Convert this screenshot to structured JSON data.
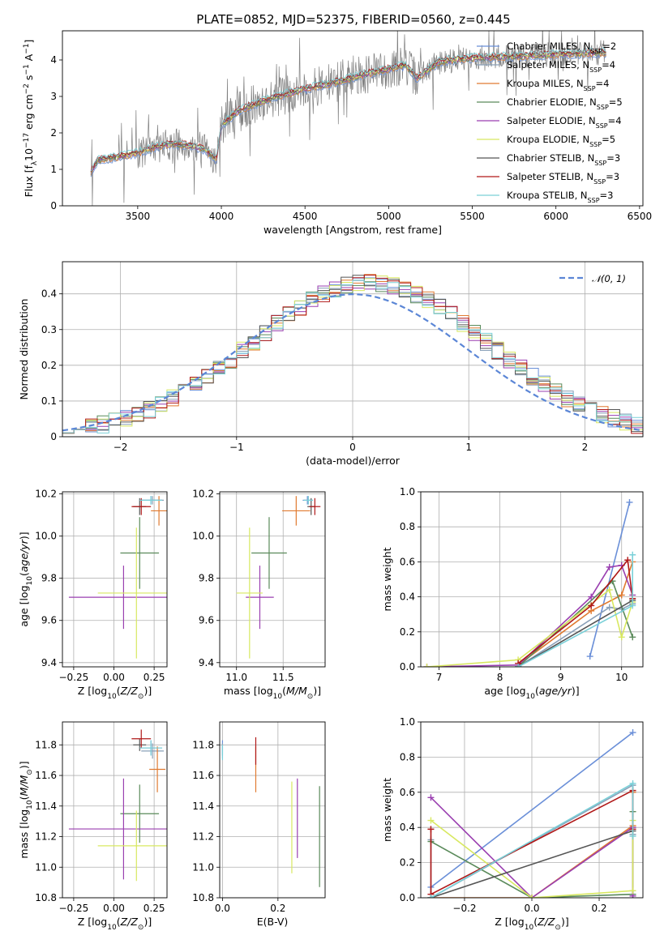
{
  "figure": {
    "title": "PLATE=0852, MJD=52375, FIBERID=0560, z=0.445"
  },
  "legend_entries": [
    {
      "name": "Chabrier MILES",
      "nssp": "2",
      "color": "#6a8fd8"
    },
    {
      "name": "Salpeter MILES",
      "nssp": "4",
      "color": "#8aa0b8"
    },
    {
      "name": "Kroupa MILES",
      "nssp": "4",
      "color": "#e07a30"
    },
    {
      "name": "Chabrier ELODIE",
      "nssp": "5",
      "color": "#5a8a5a"
    },
    {
      "name": "Salpeter ELODIE",
      "nssp": "4",
      "color": "#9a3fb0"
    },
    {
      "name": "Kroupa ELODIE",
      "nssp": "5",
      "color": "#d8e860"
    },
    {
      "name": "Chabrier STELIB",
      "nssp": "3",
      "color": "#555555"
    },
    {
      "name": "Salpeter STELIB",
      "nssp": "3",
      "color": "#b01818"
    },
    {
      "name": "Kroupa STELIB",
      "nssp": "3",
      "color": "#7ad0d8"
    }
  ],
  "chart_data": [
    {
      "id": "spectrum",
      "type": "line",
      "xlabel": "wavelength [Angstrom, rest frame]",
      "ylabel": "Flux [f_λ 10^-17 erg cm^-2 s^-1 A^-1]",
      "xlim": [
        3050,
        6520
      ],
      "ylim": [
        0,
        4.8
      ],
      "xticks": [
        3500,
        4000,
        4500,
        5000,
        5500,
        6000,
        6500
      ],
      "yticks": [
        0,
        1,
        2,
        3,
        4
      ],
      "legend_position": "right",
      "spectrum_start": 3220,
      "spectrum_end": 6300,
      "model_anchors": {
        "x": [
          3220,
          3260,
          3400,
          3500,
          3600,
          3700,
          3800,
          3900,
          3970,
          4000,
          4100,
          4300,
          4500,
          4700,
          4900,
          5000,
          5100,
          5170,
          5300,
          5500,
          5800,
          6000,
          6300
        ],
        "y": [
          0.9,
          1.25,
          1.35,
          1.45,
          1.6,
          1.7,
          1.65,
          1.55,
          1.25,
          2.2,
          2.6,
          2.95,
          3.2,
          3.4,
          3.65,
          3.75,
          3.85,
          3.5,
          3.95,
          4.05,
          4.1,
          4.15,
          4.2
        ]
      }
    },
    {
      "id": "residuals",
      "type": "line",
      "xlabel": "(data-model)/error",
      "ylabel": "Normed distribution",
      "xlim": [
        -2.5,
        2.5
      ],
      "ylim": [
        0,
        0.49
      ],
      "xticks": [
        -2,
        -1,
        0,
        1,
        2
      ],
      "yticks": [
        0,
        0.1,
        0.2,
        0.3,
        0.4
      ],
      "grid": true,
      "legend_position": "top-right",
      "reference_curve": "N(0,1)",
      "bin_width": 0.1
    },
    {
      "id": "age-vs-Z",
      "type": "scatter",
      "xlabel": "Z [log10(Z/Z_sun)]",
      "ylabel": "age [log10(age/yr)]",
      "xlim": [
        -0.32,
        0.33
      ],
      "ylim": [
        9.38,
        10.21
      ],
      "xticks": [
        -0.25,
        0.0,
        0.25
      ],
      "yticks": [
        9.4,
        9.6,
        9.8,
        10.0,
        10.2
      ],
      "grid": true,
      "points": [
        {
          "x": 0.23,
          "y": 10.17,
          "xerr": 0.07,
          "yerr": 0.02,
          "series": "Chabrier MILES"
        },
        {
          "x": 0.24,
          "y": 10.17,
          "xerr": 0.07,
          "yerr": 0.02,
          "series": "Salpeter MILES"
        },
        {
          "x": 0.28,
          "y": 10.12,
          "xerr": 0.05,
          "yerr": 0.07,
          "series": "Kroupa MILES"
        },
        {
          "x": 0.16,
          "y": 9.92,
          "xerr": 0.12,
          "yerr": 0.17,
          "series": "Chabrier ELODIE"
        },
        {
          "x": 0.06,
          "y": 9.71,
          "xerr": 0.34,
          "yerr": 0.15,
          "series": "Salpeter ELODIE"
        },
        {
          "x": 0.14,
          "y": 9.73,
          "xerr": 0.24,
          "yerr": 0.31,
          "series": "Kroupa ELODIE"
        },
        {
          "x": 0.16,
          "y": 10.14,
          "xerr": 0.04,
          "yerr": 0.04,
          "series": "Chabrier STELIB"
        },
        {
          "x": 0.17,
          "y": 10.14,
          "xerr": 0.06,
          "yerr": 0.04,
          "series": "Salpeter STELIB"
        },
        {
          "x": 0.23,
          "y": 10.17,
          "xerr": 0.07,
          "yerr": 0.02,
          "series": "Kroupa STELIB"
        }
      ]
    },
    {
      "id": "age-vs-mass",
      "type": "scatter",
      "xlabel": "mass [log10(M/M_sun)]",
      "ylabel": "",
      "xlim": [
        10.82,
        11.95
      ],
      "ylim": [
        9.38,
        10.21
      ],
      "xticks": [
        11.0,
        11.5
      ],
      "yticks": [
        9.4,
        9.6,
        9.8,
        10.0,
        10.2
      ],
      "grid": true,
      "points": [
        {
          "x": 11.76,
          "y": 10.17,
          "xerr": 0.05,
          "yerr": 0.02,
          "series": "Chabrier MILES"
        },
        {
          "x": 11.77,
          "y": 10.17,
          "xerr": 0.05,
          "yerr": 0.02,
          "series": "Salpeter MILES"
        },
        {
          "x": 11.64,
          "y": 10.12,
          "xerr": 0.15,
          "yerr": 0.07,
          "series": "Kroupa MILES"
        },
        {
          "x": 11.35,
          "y": 9.92,
          "xerr": 0.19,
          "yerr": 0.17,
          "series": "Chabrier ELODIE"
        },
        {
          "x": 11.25,
          "y": 9.71,
          "xerr": 0.15,
          "yerr": 0.15,
          "series": "Salpeter ELODIE"
        },
        {
          "x": 11.14,
          "y": 9.73,
          "xerr": 0.14,
          "yerr": 0.31,
          "series": "Kroupa ELODIE"
        },
        {
          "x": 11.8,
          "y": 10.14,
          "xerr": 0.04,
          "yerr": 0.04,
          "series": "Chabrier STELIB"
        },
        {
          "x": 11.84,
          "y": 10.14,
          "xerr": 0.06,
          "yerr": 0.04,
          "series": "Salpeter STELIB"
        },
        {
          "x": 11.77,
          "y": 10.17,
          "xerr": 0.05,
          "yerr": 0.02,
          "series": "Kroupa STELIB"
        }
      ]
    },
    {
      "id": "massweight-vs-age",
      "type": "line",
      "xlabel": "age [log10(age/yr)]",
      "ylabel": "mass weight",
      "xlim": [
        6.7,
        10.35
      ],
      "ylim": [
        0,
        1.0
      ],
      "xticks": [
        7,
        8,
        9,
        10
      ],
      "yticks": [
        0.0,
        0.2,
        0.4,
        0.6,
        0.8,
        1.0
      ],
      "grid": true,
      "series": [
        {
          "name": "Chabrier MILES",
          "x": [
            9.48,
            10.13
          ],
          "y": [
            0.06,
            0.94
          ]
        },
        {
          "name": "Salpeter MILES",
          "x": [
            8.3,
            9.8,
            10.0,
            10.18
          ],
          "y": [
            0.0,
            0.34,
            0.33,
            0.36
          ]
        },
        {
          "name": "Kroupa MILES",
          "x": [
            8.3,
            9.5,
            10.0,
            10.18
          ],
          "y": [
            0.01,
            0.32,
            0.41,
            0.6
          ]
        },
        {
          "name": "Chabrier ELODIE",
          "x": [
            8.3,
            9.85,
            10.18
          ],
          "y": [
            0.0,
            0.49,
            0.17
          ]
        },
        {
          "name": "Salpeter ELODIE",
          "x": [
            6.8,
            8.3,
            9.5,
            9.8,
            10.0,
            10.18
          ],
          "y": [
            0.0,
            0.01,
            0.4,
            0.57,
            0.58,
            0.41
          ]
        },
        {
          "name": "Kroupa ELODIE",
          "x": [
            6.8,
            8.3,
            9.8,
            10.0,
            10.18
          ],
          "y": [
            0.0,
            0.04,
            0.44,
            0.17,
            0.37
          ]
        },
        {
          "name": "Chabrier STELIB",
          "x": [
            8.3,
            10.18
          ],
          "y": [
            0.0,
            0.38
          ]
        },
        {
          "name": "Salpeter STELIB",
          "x": [
            8.3,
            9.5,
            10.1,
            10.18
          ],
          "y": [
            0.02,
            0.35,
            0.61,
            0.39
          ]
        },
        {
          "name": "Kroupa STELIB",
          "x": [
            8.3,
            10.18,
            10.18
          ],
          "y": [
            0.0,
            0.35,
            0.64
          ]
        }
      ]
    },
    {
      "id": "mass-vs-Z",
      "type": "scatter",
      "xlabel": "Z [log10(Z/Z_sun)]",
      "ylabel": "mass [log10(M/M_sun)]",
      "xlim": [
        -0.32,
        0.33
      ],
      "ylim": [
        10.8,
        11.95
      ],
      "xticks": [
        -0.25,
        0.0,
        0.25
      ],
      "yticks": [
        10.8,
        11.0,
        11.2,
        11.4,
        11.6,
        11.8
      ],
      "grid": true,
      "points": [
        {
          "x": 0.23,
          "y": 11.78,
          "xerr": 0.07,
          "yerr": 0.05,
          "series": "Chabrier MILES"
        },
        {
          "x": 0.24,
          "y": 11.76,
          "xerr": 0.07,
          "yerr": 0.05,
          "series": "Salpeter MILES"
        },
        {
          "x": 0.27,
          "y": 11.64,
          "xerr": 0.05,
          "yerr": 0.15,
          "series": "Kroupa MILES"
        },
        {
          "x": 0.16,
          "y": 11.35,
          "xerr": 0.12,
          "yerr": 0.19,
          "series": "Chabrier ELODIE"
        },
        {
          "x": 0.06,
          "y": 11.25,
          "xerr": 0.34,
          "yerr": 0.33,
          "series": "Salpeter ELODIE"
        },
        {
          "x": 0.14,
          "y": 11.14,
          "xerr": 0.24,
          "yerr": 0.23,
          "series": "Kroupa ELODIE"
        },
        {
          "x": 0.16,
          "y": 11.8,
          "xerr": 0.04,
          "yerr": 0.04,
          "series": "Chabrier STELIB"
        },
        {
          "x": 0.17,
          "y": 11.84,
          "xerr": 0.06,
          "yerr": 0.06,
          "series": "Salpeter STELIB"
        },
        {
          "x": 0.23,
          "y": 11.78,
          "xerr": 0.07,
          "yerr": 0.05,
          "series": "Kroupa STELIB"
        }
      ]
    },
    {
      "id": "mass-vs-EBV",
      "type": "scatter",
      "xlabel": "E(B-V)",
      "ylabel": "",
      "xlim": [
        -0.01,
        0.37
      ],
      "ylim": [
        10.8,
        11.95
      ],
      "xticks": [
        0.0,
        0.2
      ],
      "yticks": [
        10.8,
        11.0,
        11.2,
        11.4,
        11.6,
        11.8
      ],
      "grid": true,
      "points": [
        {
          "x": 0.0,
          "y": 11.78,
          "yerr": 0.05,
          "series": "Chabrier MILES"
        },
        {
          "x": 0.0,
          "y": 11.76,
          "yerr": 0.05,
          "series": "Salpeter MILES"
        },
        {
          "x": 0.12,
          "y": 11.64,
          "yerr": 0.15,
          "series": "Kroupa MILES"
        },
        {
          "x": 0.35,
          "y": 11.2,
          "yerr": 0.33,
          "series": "Chabrier ELODIE"
        },
        {
          "x": 0.27,
          "y": 11.32,
          "yerr": 0.26,
          "series": "Salpeter ELODIE"
        },
        {
          "x": 0.25,
          "y": 11.26,
          "yerr": 0.3,
          "series": "Kroupa ELODIE"
        },
        {
          "x": 0.12,
          "y": 11.76,
          "yerr": 0.09,
          "series": "Salpeter STELIB"
        },
        {
          "x": 0.0,
          "y": 11.75,
          "yerr": 0.05,
          "series": "Kroupa STELIB"
        }
      ]
    },
    {
      "id": "massweight-vs-Z",
      "type": "line",
      "xlabel": "Z [log10(Z/Z_sun)]",
      "ylabel": "mass weight",
      "xlim": [
        -0.33,
        0.33
      ],
      "ylim": [
        0,
        1.0
      ],
      "xticks": [
        -0.2,
        0.0,
        0.2
      ],
      "yticks": [
        0.0,
        0.2,
        0.4,
        0.6,
        0.8,
        1.0
      ],
      "grid": true,
      "series": [
        {
          "name": "Chabrier MILES",
          "x": [
            -0.3,
            0.3
          ],
          "y": [
            0.06,
            0.94
          ]
        },
        {
          "name": "Salpeter MILES",
          "x": [
            -0.3,
            -0.3,
            0.3,
            0.3
          ],
          "y": [
            0.33,
            0.0,
            0.64,
            0.36
          ]
        },
        {
          "name": "Kroupa MILES",
          "x": [
            -0.3,
            0.0,
            0.3,
            0.3
          ],
          "y": [
            0.0,
            0.0,
            0.41,
            0.6
          ]
        },
        {
          "name": "Chabrier ELODIE",
          "x": [
            -0.3,
            0.0,
            0.3,
            0.3
          ],
          "y": [
            0.32,
            0.0,
            0.02,
            0.49
          ]
        },
        {
          "name": "Salpeter ELODIE",
          "x": [
            -0.3,
            0.0,
            0.3,
            0.3
          ],
          "y": [
            0.57,
            0.0,
            0.4,
            0.01
          ]
        },
        {
          "name": "Kroupa ELODIE",
          "x": [
            -0.3,
            0.0,
            0.3,
            0.3
          ],
          "y": [
            0.44,
            0.0,
            0.04,
            0.44
          ]
        },
        {
          "name": "Chabrier STELIB",
          "x": [
            -0.3,
            0.3
          ],
          "y": [
            0.0,
            0.38
          ]
        },
        {
          "name": "Salpeter STELIB",
          "x": [
            -0.3,
            -0.3,
            0.3,
            0.3
          ],
          "y": [
            0.39,
            0.02,
            0.61,
            0.39
          ]
        },
        {
          "name": "Kroupa STELIB",
          "x": [
            -0.3,
            0.3,
            0.3
          ],
          "y": [
            0.0,
            0.65,
            0.35
          ]
        }
      ]
    }
  ]
}
